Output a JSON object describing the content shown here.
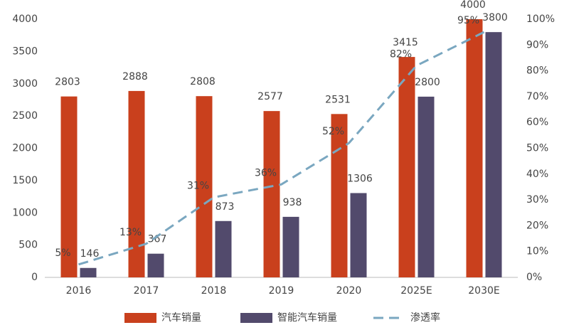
{
  "chart_data": {
    "type": "bar",
    "categories": [
      "2016",
      "2017",
      "2018",
      "2019",
      "2020",
      "2025E",
      "2030E"
    ],
    "ylim": [
      0,
      4000
    ],
    "yticks": [
      0,
      500,
      1000,
      1500,
      2000,
      2500,
      3000,
      3500,
      4000
    ],
    "y2lim": [
      0,
      100
    ],
    "y2ticks": [
      {
        "value": 0,
        "label": "0%"
      },
      {
        "value": 10,
        "label": "10%"
      },
      {
        "value": 20,
        "label": "20%"
      },
      {
        "value": 30,
        "label": "30%"
      },
      {
        "value": 40,
        "label": "40%"
      },
      {
        "value": 50,
        "label": "50%"
      },
      {
        "value": 60,
        "label": "60%"
      },
      {
        "value": 70,
        "label": "70%"
      },
      {
        "value": 80,
        "label": "80%"
      },
      {
        "value": 90,
        "label": "90%"
      },
      {
        "value": 100,
        "label": "100%"
      }
    ],
    "grid": false,
    "legend": "bottom",
    "series": [
      {
        "name": "汽车销量",
        "color": "#c9401d",
        "values": [
          2803,
          2888,
          2808,
          2577,
          2531,
          3415,
          4000
        ]
      },
      {
        "name": "智能汽车销量",
        "color": "#524a6c",
        "values": [
          146,
          367,
          873,
          938,
          1306,
          2800,
          3800
        ]
      },
      {
        "name": "渗透率",
        "color": "#7aa7c0",
        "type": "line",
        "dashed": true,
        "axis": "y2",
        "values": [
          5,
          13,
          31,
          36,
          52,
          82,
          95
        ],
        "value_labels": [
          "5%",
          "13%",
          "31%",
          "36%",
          "52%",
          "82%",
          "95%"
        ]
      }
    ]
  }
}
